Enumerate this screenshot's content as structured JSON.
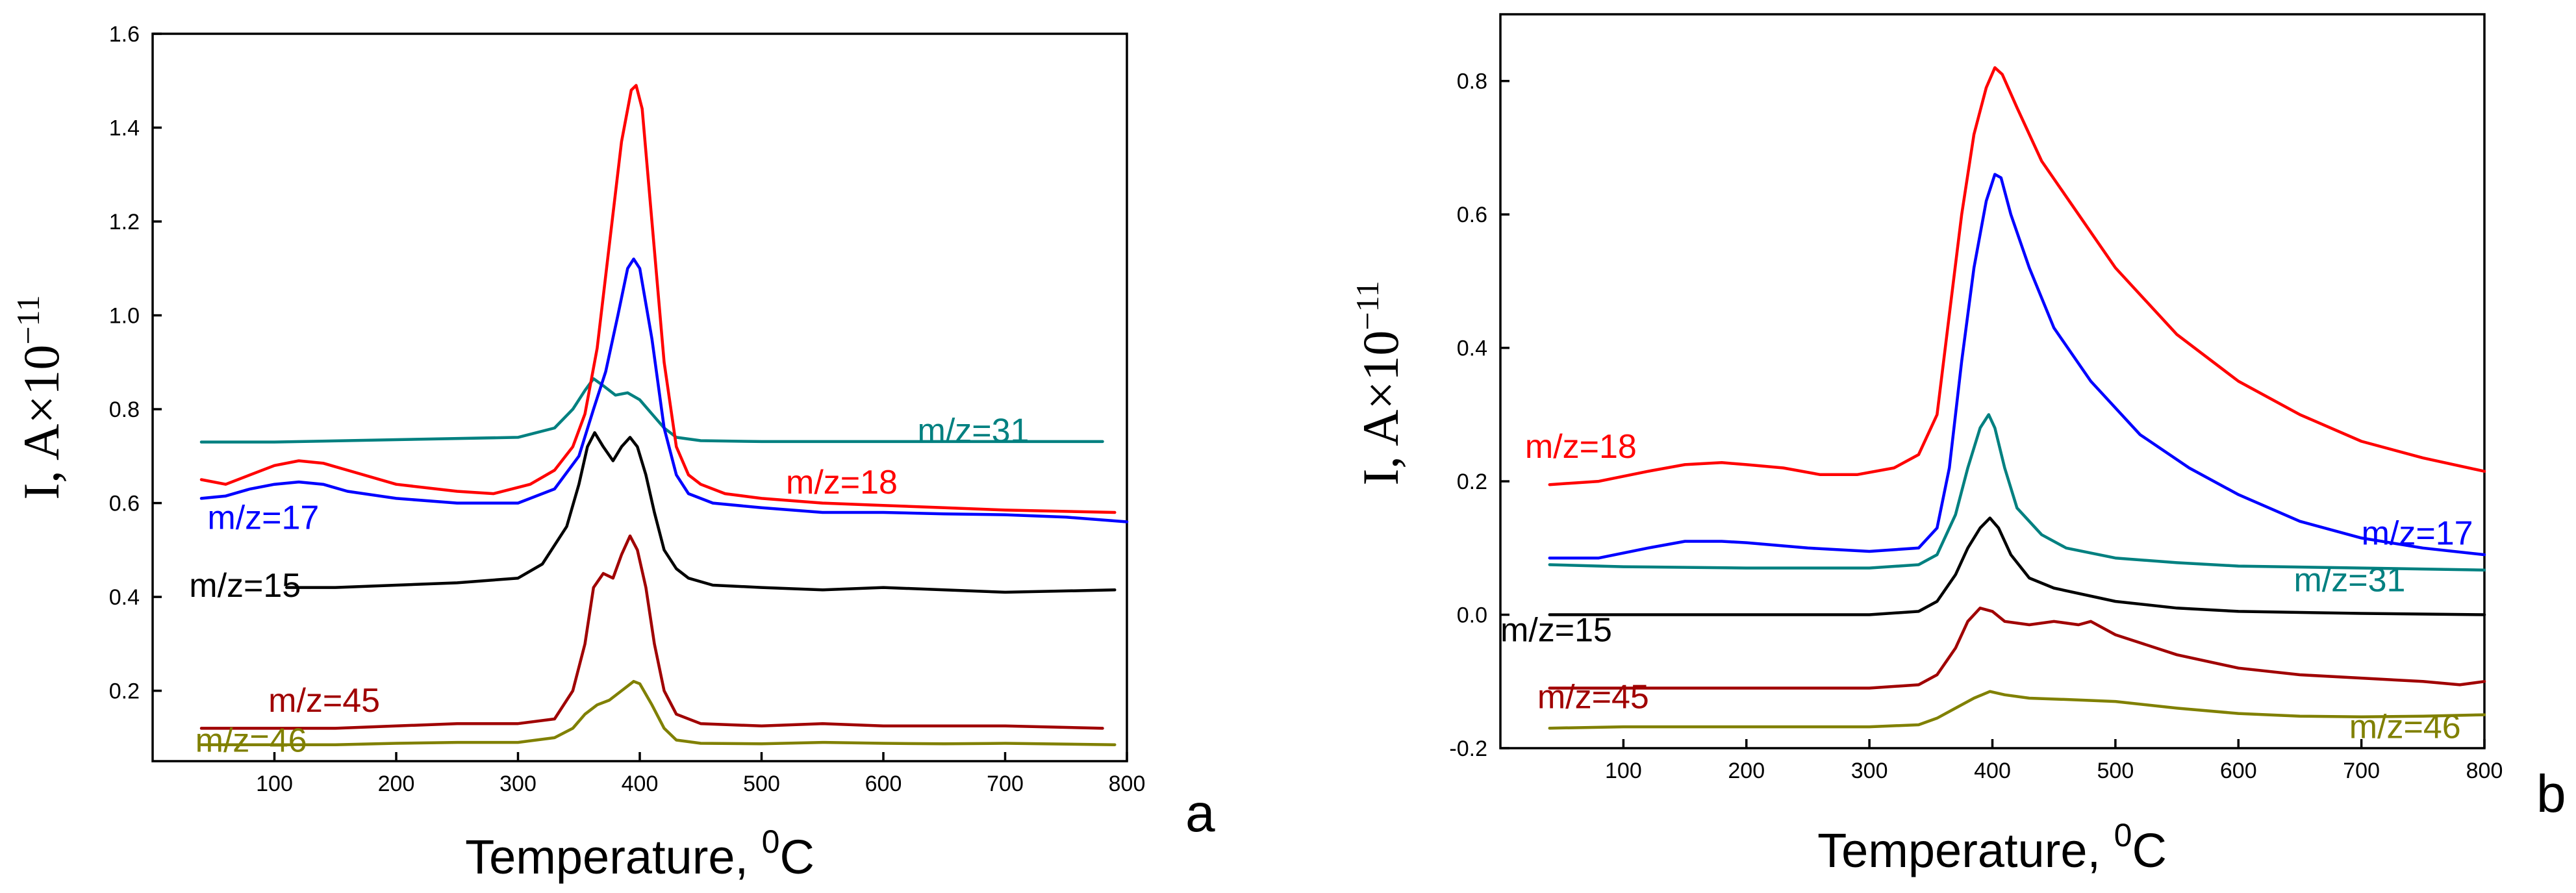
{
  "figure": {
    "panel_labels": [
      "a",
      "b"
    ]
  },
  "chart_data": [
    {
      "type": "line",
      "panel": "a",
      "xlabel_main": "Temperature, ",
      "xlabel_sup": "0",
      "xlabel_end": "C",
      "ylabel_main": "I, A×10",
      "ylabel_sup": "−11",
      "xlim": [
        0,
        800
      ],
      "ylim": [
        0.05,
        1.6
      ],
      "xticks": [
        100,
        200,
        300,
        400,
        500,
        600,
        700,
        800
      ],
      "xtick_labels": [
        "100",
        "200",
        "300",
        "400",
        "500",
        "600",
        "700",
        "800"
      ],
      "yticks": [
        0.2,
        0.4,
        0.6,
        0.8,
        1.0,
        1.2,
        1.4,
        1.6
      ],
      "ytick_labels": [
        "0.2",
        "0.4",
        "0.6",
        "0.8",
        "1.0",
        "1.2",
        "1.4",
        "1.6"
      ],
      "series": [
        {
          "name": "m/z=31",
          "color": "#008080",
          "x": [
            40,
            100,
            200,
            300,
            330,
            345,
            355,
            362,
            370,
            380,
            390,
            400,
            410,
            420,
            430,
            450,
            500,
            600,
            700,
            780
          ],
          "y": [
            0.73,
            0.73,
            0.735,
            0.74,
            0.76,
            0.8,
            0.84,
            0.865,
            0.85,
            0.83,
            0.835,
            0.82,
            0.79,
            0.76,
            0.74,
            0.733,
            0.731,
            0.731,
            0.731,
            0.731
          ]
        },
        {
          "name": "m/z=18",
          "color": "#ff0000",
          "x": [
            40,
            60,
            80,
            100,
            120,
            140,
            160,
            200,
            250,
            280,
            310,
            330,
            345,
            355,
            365,
            375,
            385,
            393,
            397,
            402,
            410,
            420,
            430,
            440,
            450,
            470,
            500,
            550,
            600,
            650,
            700,
            790
          ],
          "y": [
            0.65,
            0.64,
            0.66,
            0.68,
            0.69,
            0.685,
            0.67,
            0.64,
            0.625,
            0.62,
            0.64,
            0.67,
            0.72,
            0.79,
            0.93,
            1.15,
            1.37,
            1.48,
            1.49,
            1.44,
            1.2,
            0.9,
            0.72,
            0.66,
            0.64,
            0.62,
            0.61,
            0.6,
            0.595,
            0.59,
            0.585,
            0.58
          ]
        },
        {
          "name": "m/z=17",
          "color": "#0000ff",
          "x": [
            40,
            60,
            80,
            100,
            120,
            140,
            160,
            200,
            250,
            300,
            330,
            350,
            362,
            372,
            382,
            390,
            395,
            400,
            410,
            420,
            430,
            440,
            460,
            500,
            550,
            600,
            650,
            700,
            750,
            800
          ],
          "y": [
            0.61,
            0.615,
            0.63,
            0.64,
            0.645,
            0.64,
            0.625,
            0.61,
            0.6,
            0.6,
            0.63,
            0.7,
            0.8,
            0.88,
            1.0,
            1.1,
            1.12,
            1.1,
            0.95,
            0.76,
            0.66,
            0.62,
            0.6,
            0.59,
            0.58,
            0.58,
            0.577,
            0.575,
            0.57,
            0.56
          ]
        },
        {
          "name": "m/z=15",
          "color": "#000000",
          "x": [
            110,
            150,
            200,
            250,
            300,
            320,
            340,
            350,
            357,
            363,
            370,
            378,
            385,
            392,
            398,
            405,
            412,
            420,
            430,
            440,
            460,
            500,
            550,
            600,
            650,
            700,
            790
          ],
          "y": [
            0.42,
            0.42,
            0.425,
            0.43,
            0.44,
            0.47,
            0.55,
            0.64,
            0.72,
            0.75,
            0.72,
            0.69,
            0.72,
            0.74,
            0.72,
            0.66,
            0.58,
            0.5,
            0.46,
            0.44,
            0.425,
            0.42,
            0.415,
            0.42,
            0.415,
            0.41,
            0.415
          ]
        },
        {
          "name": "m/z=45",
          "color": "#a00000",
          "x": [
            40,
            100,
            150,
            200,
            250,
            300,
            330,
            345,
            355,
            362,
            370,
            378,
            385,
            392,
            398,
            405,
            412,
            420,
            430,
            450,
            500,
            550,
            600,
            650,
            700,
            780
          ],
          "y": [
            0.12,
            0.12,
            0.12,
            0.125,
            0.13,
            0.13,
            0.14,
            0.2,
            0.3,
            0.42,
            0.45,
            0.44,
            0.49,
            0.53,
            0.5,
            0.42,
            0.3,
            0.2,
            0.15,
            0.13,
            0.125,
            0.13,
            0.125,
            0.125,
            0.125,
            0.12
          ]
        },
        {
          "name": "m/z=46",
          "color": "#808000",
          "x": [
            40,
            100,
            150,
            200,
            250,
            300,
            330,
            345,
            355,
            365,
            375,
            385,
            395,
            400,
            410,
            420,
            430,
            450,
            500,
            550,
            600,
            650,
            700,
            790
          ],
          "y": [
            0.085,
            0.085,
            0.085,
            0.088,
            0.09,
            0.09,
            0.1,
            0.12,
            0.15,
            0.17,
            0.18,
            0.2,
            0.22,
            0.215,
            0.17,
            0.12,
            0.095,
            0.088,
            0.087,
            0.09,
            0.088,
            0.087,
            0.088,
            0.085
          ]
        }
      ],
      "annotations": [
        {
          "text": "m/z=31",
          "color": "#008080",
          "x": 628,
          "y": 0.73
        },
        {
          "text": "m/z=18",
          "color": "#ff0000",
          "x": 520,
          "y": 0.62
        },
        {
          "text": "m/z=17",
          "color": "#0000ff",
          "x": 45,
          "y": 0.545
        },
        {
          "text": "m/z=15",
          "color": "#000000",
          "x": 30,
          "y": 0.4
        },
        {
          "text": "m/z=45",
          "color": "#a00000",
          "x": 95,
          "y": 0.155
        },
        {
          "text": "m/z=46",
          "color": "#808000",
          "x": 35,
          "y": 0.07
        }
      ]
    },
    {
      "type": "line",
      "panel": "b",
      "xlabel_main": "Temperature, ",
      "xlabel_sup": "0",
      "xlabel_end": "C",
      "ylabel_main": "I, A×10",
      "ylabel_sup": "−11",
      "xlim": [
        0,
        800
      ],
      "ylim": [
        -0.2,
        0.9
      ],
      "xticks": [
        100,
        200,
        300,
        400,
        500,
        600,
        700,
        800
      ],
      "xtick_labels": [
        "100",
        "200",
        "300",
        "400",
        "500",
        "600",
        "700",
        "800"
      ],
      "yticks": [
        -0.2,
        0.0,
        0.2,
        0.4,
        0.6,
        0.8
      ],
      "ytick_labels": [
        "-0.2",
        "0.0",
        "0.2",
        "0.4",
        "0.6",
        "0.8"
      ],
      "series": [
        {
          "name": "m/z=18",
          "color": "#ff0000",
          "x": [
            40,
            80,
            120,
            150,
            180,
            200,
            230,
            260,
            290,
            320,
            340,
            355,
            365,
            375,
            385,
            395,
            402,
            408,
            420,
            440,
            470,
            500,
            550,
            600,
            650,
            700,
            750,
            800
          ],
          "y": [
            0.195,
            0.2,
            0.215,
            0.225,
            0.228,
            0.225,
            0.22,
            0.21,
            0.21,
            0.22,
            0.24,
            0.3,
            0.45,
            0.6,
            0.72,
            0.79,
            0.82,
            0.81,
            0.76,
            0.68,
            0.6,
            0.52,
            0.42,
            0.35,
            0.3,
            0.26,
            0.235,
            0.215
          ]
        },
        {
          "name": "m/z=17",
          "color": "#0000ff",
          "x": [
            40,
            80,
            120,
            150,
            180,
            200,
            250,
            300,
            340,
            355,
            365,
            375,
            385,
            395,
            402,
            407,
            415,
            430,
            450,
            480,
            520,
            560,
            600,
            650,
            700,
            750,
            800
          ],
          "y": [
            0.085,
            0.085,
            0.1,
            0.11,
            0.11,
            0.108,
            0.1,
            0.095,
            0.1,
            0.13,
            0.22,
            0.38,
            0.52,
            0.62,
            0.66,
            0.655,
            0.6,
            0.52,
            0.43,
            0.35,
            0.27,
            0.22,
            0.18,
            0.14,
            0.115,
            0.1,
            0.09
          ]
        },
        {
          "name": "m/z=31",
          "color": "#008080",
          "x": [
            40,
            100,
            200,
            300,
            340,
            355,
            370,
            380,
            390,
            397,
            402,
            410,
            420,
            440,
            460,
            500,
            550,
            600,
            700,
            800
          ],
          "y": [
            0.075,
            0.072,
            0.07,
            0.07,
            0.075,
            0.09,
            0.15,
            0.22,
            0.28,
            0.3,
            0.28,
            0.22,
            0.16,
            0.12,
            0.1,
            0.085,
            0.078,
            0.073,
            0.07,
            0.067
          ]
        },
        {
          "name": "m/z=15",
          "color": "#000000",
          "x": [
            40,
            100,
            200,
            300,
            340,
            355,
            370,
            380,
            390,
            398,
            405,
            415,
            430,
            450,
            500,
            550,
            600,
            700,
            800
          ],
          "y": [
            0.0,
            0.0,
            0.0,
            0.0,
            0.005,
            0.02,
            0.06,
            0.1,
            0.13,
            0.145,
            0.13,
            0.09,
            0.055,
            0.04,
            0.02,
            0.01,
            0.005,
            0.002,
            0.0
          ]
        },
        {
          "name": "m/z=45",
          "color": "#a00000",
          "x": [
            40,
            100,
            200,
            300,
            340,
            355,
            370,
            380,
            390,
            400,
            410,
            430,
            450,
            470,
            480,
            500,
            550,
            600,
            650,
            700,
            750,
            780,
            800
          ],
          "y": [
            -0.11,
            -0.11,
            -0.11,
            -0.11,
            -0.105,
            -0.09,
            -0.05,
            -0.01,
            0.01,
            0.005,
            -0.01,
            -0.015,
            -0.01,
            -0.015,
            -0.01,
            -0.03,
            -0.06,
            -0.08,
            -0.09,
            -0.095,
            -0.1,
            -0.105,
            -0.1
          ]
        },
        {
          "name": "m/z=46",
          "color": "#808000",
          "x": [
            40,
            100,
            200,
            300,
            340,
            355,
            370,
            385,
            398,
            410,
            430,
            460,
            500,
            550,
            600,
            650,
            700,
            750,
            800
          ],
          "y": [
            -0.17,
            -0.168,
            -0.168,
            -0.168,
            -0.165,
            -0.155,
            -0.14,
            -0.125,
            -0.115,
            -0.12,
            -0.125,
            -0.127,
            -0.13,
            -0.14,
            -0.148,
            -0.152,
            -0.153,
            -0.152,
            -0.15
          ]
        }
      ],
      "annotations": [
        {
          "text": "m/z=18",
          "color": "#ff0000",
          "x": 20,
          "y": 0.235
        },
        {
          "text": "m/z=17",
          "color": "#0000ff",
          "x": 700,
          "y": 0.105
        },
        {
          "text": "m/z=31",
          "color": "#008080",
          "x": 645,
          "y": 0.035
        },
        {
          "text": "m/z=15",
          "color": "#000000",
          "x": 0,
          "y": -0.04
        },
        {
          "text": "m/z=45",
          "color": "#a00000",
          "x": 30,
          "y": -0.14
        },
        {
          "text": "m/z=46",
          "color": "#808000",
          "x": 690,
          "y": -0.185
        }
      ]
    }
  ]
}
